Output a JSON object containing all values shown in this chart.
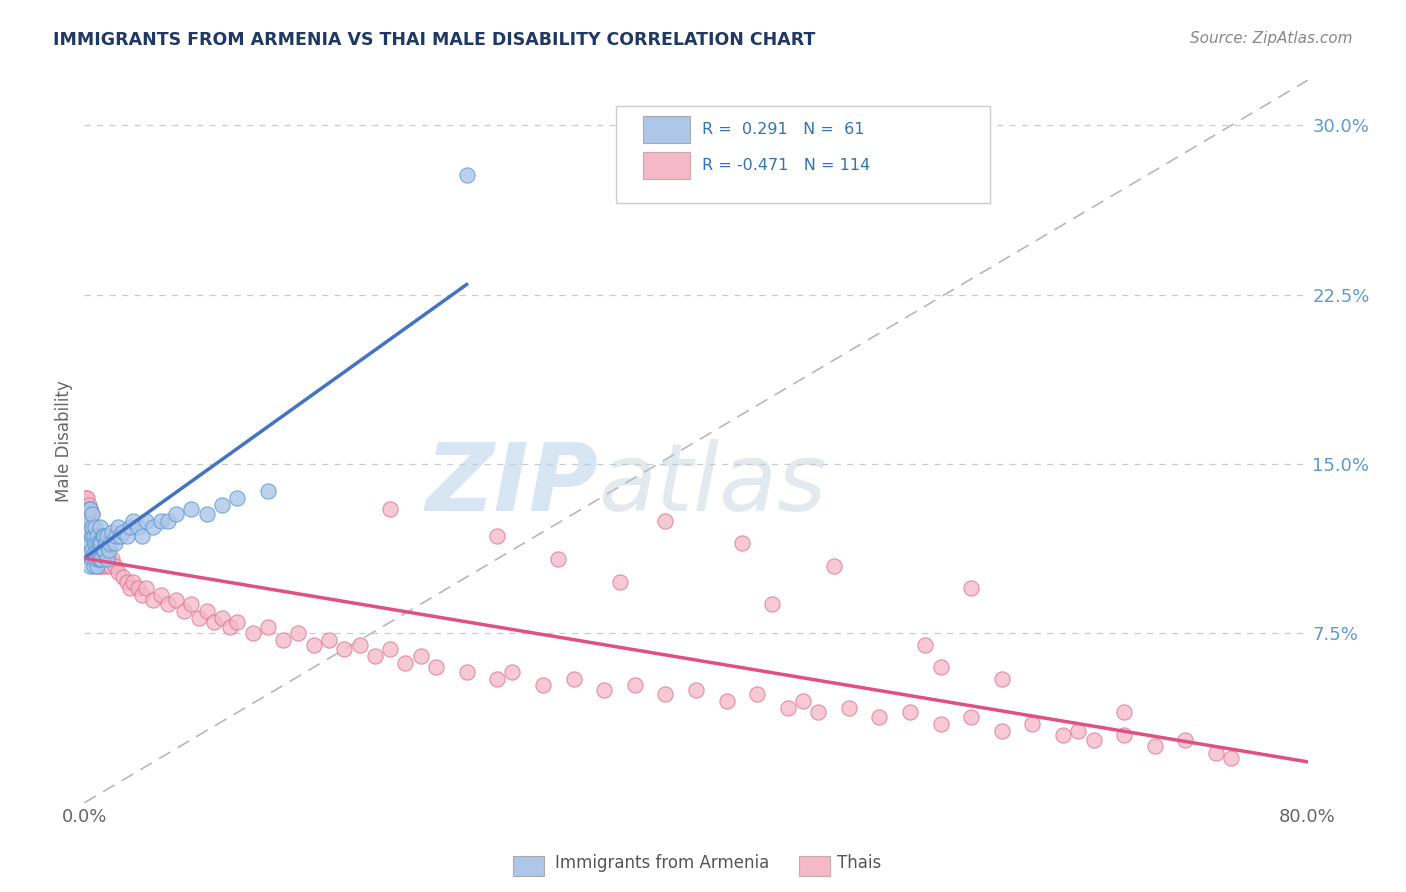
{
  "title": "IMMIGRANTS FROM ARMENIA VS THAI MALE DISABILITY CORRELATION CHART",
  "source": "Source: ZipAtlas.com",
  "ylabel": "Male Disability",
  "xlim": [
    0.0,
    0.8
  ],
  "ylim": [
    0.0,
    0.32
  ],
  "xtick_labels": [
    "0.0%",
    "80.0%"
  ],
  "ytick_labels_right": [
    "7.5%",
    "15.0%",
    "22.5%",
    "30.0%"
  ],
  "ytick_vals_right": [
    0.075,
    0.15,
    0.225,
    0.3
  ],
  "color_armenia": "#aec6e8",
  "color_thai": "#f4b8c8",
  "color_armenia_edge": "#5b9bd5",
  "color_thai_edge": "#e07090",
  "color_trendline_armenia": "#4472c4",
  "color_trendline_thai": "#e05080",
  "color_dashed_line": "#b8b8b8",
  "watermark_zip": "ZIP",
  "watermark_atlas": "atlas",
  "armenia_x": [
    0.002,
    0.002,
    0.003,
    0.003,
    0.003,
    0.004,
    0.004,
    0.004,
    0.004,
    0.005,
    0.005,
    0.005,
    0.005,
    0.005,
    0.006,
    0.006,
    0.006,
    0.007,
    0.007,
    0.007,
    0.008,
    0.008,
    0.008,
    0.009,
    0.009,
    0.01,
    0.01,
    0.01,
    0.011,
    0.011,
    0.012,
    0.012,
    0.013,
    0.013,
    0.014,
    0.015,
    0.015,
    0.016,
    0.017,
    0.018,
    0.02,
    0.021,
    0.022,
    0.023,
    0.025,
    0.028,
    0.03,
    0.032,
    0.035,
    0.038,
    0.04,
    0.045,
    0.05,
    0.055,
    0.06,
    0.07,
    0.08,
    0.09,
    0.1,
    0.12,
    0.25
  ],
  "armenia_y": [
    0.115,
    0.125,
    0.11,
    0.12,
    0.13,
    0.105,
    0.115,
    0.12,
    0.13,
    0.108,
    0.112,
    0.118,
    0.122,
    0.128,
    0.105,
    0.11,
    0.118,
    0.108,
    0.115,
    0.122,
    0.105,
    0.112,
    0.118,
    0.108,
    0.115,
    0.108,
    0.115,
    0.122,
    0.108,
    0.115,
    0.112,
    0.118,
    0.112,
    0.118,
    0.115,
    0.108,
    0.118,
    0.112,
    0.115,
    0.12,
    0.115,
    0.118,
    0.122,
    0.118,
    0.12,
    0.118,
    0.122,
    0.125,
    0.122,
    0.118,
    0.125,
    0.122,
    0.125,
    0.125,
    0.128,
    0.13,
    0.128,
    0.132,
    0.135,
    0.138,
    0.278
  ],
  "thai_x": [
    0.001,
    0.001,
    0.001,
    0.002,
    0.002,
    0.002,
    0.002,
    0.003,
    0.003,
    0.003,
    0.003,
    0.004,
    0.004,
    0.004,
    0.004,
    0.005,
    0.005,
    0.005,
    0.005,
    0.006,
    0.006,
    0.006,
    0.007,
    0.007,
    0.008,
    0.008,
    0.009,
    0.009,
    0.01,
    0.01,
    0.012,
    0.012,
    0.013,
    0.014,
    0.015,
    0.016,
    0.017,
    0.018,
    0.02,
    0.022,
    0.025,
    0.028,
    0.03,
    0.032,
    0.035,
    0.038,
    0.04,
    0.045,
    0.05,
    0.055,
    0.06,
    0.065,
    0.07,
    0.075,
    0.08,
    0.085,
    0.09,
    0.095,
    0.1,
    0.11,
    0.12,
    0.13,
    0.14,
    0.15,
    0.16,
    0.17,
    0.18,
    0.19,
    0.2,
    0.21,
    0.22,
    0.23,
    0.25,
    0.27,
    0.28,
    0.3,
    0.32,
    0.34,
    0.36,
    0.38,
    0.4,
    0.42,
    0.44,
    0.46,
    0.47,
    0.48,
    0.5,
    0.52,
    0.54,
    0.56,
    0.58,
    0.6,
    0.62,
    0.64,
    0.65,
    0.66,
    0.68,
    0.7,
    0.72,
    0.74,
    0.35,
    0.45,
    0.55,
    0.43,
    0.38,
    0.58,
    0.27,
    0.31,
    0.49,
    0.6,
    0.2,
    0.75,
    0.68,
    0.56
  ],
  "thai_y": [
    0.125,
    0.13,
    0.135,
    0.12,
    0.125,
    0.13,
    0.135,
    0.118,
    0.122,
    0.128,
    0.132,
    0.115,
    0.12,
    0.125,
    0.13,
    0.112,
    0.118,
    0.122,
    0.128,
    0.11,
    0.115,
    0.12,
    0.108,
    0.115,
    0.108,
    0.115,
    0.105,
    0.112,
    0.105,
    0.112,
    0.105,
    0.11,
    0.108,
    0.11,
    0.105,
    0.108,
    0.105,
    0.108,
    0.105,
    0.102,
    0.1,
    0.098,
    0.095,
    0.098,
    0.095,
    0.092,
    0.095,
    0.09,
    0.092,
    0.088,
    0.09,
    0.085,
    0.088,
    0.082,
    0.085,
    0.08,
    0.082,
    0.078,
    0.08,
    0.075,
    0.078,
    0.072,
    0.075,
    0.07,
    0.072,
    0.068,
    0.07,
    0.065,
    0.068,
    0.062,
    0.065,
    0.06,
    0.058,
    0.055,
    0.058,
    0.052,
    0.055,
    0.05,
    0.052,
    0.048,
    0.05,
    0.045,
    0.048,
    0.042,
    0.045,
    0.04,
    0.042,
    0.038,
    0.04,
    0.035,
    0.038,
    0.032,
    0.035,
    0.03,
    0.032,
    0.028,
    0.03,
    0.025,
    0.028,
    0.022,
    0.098,
    0.088,
    0.07,
    0.115,
    0.125,
    0.095,
    0.118,
    0.108,
    0.105,
    0.055,
    0.13,
    0.02,
    0.04,
    0.06
  ]
}
